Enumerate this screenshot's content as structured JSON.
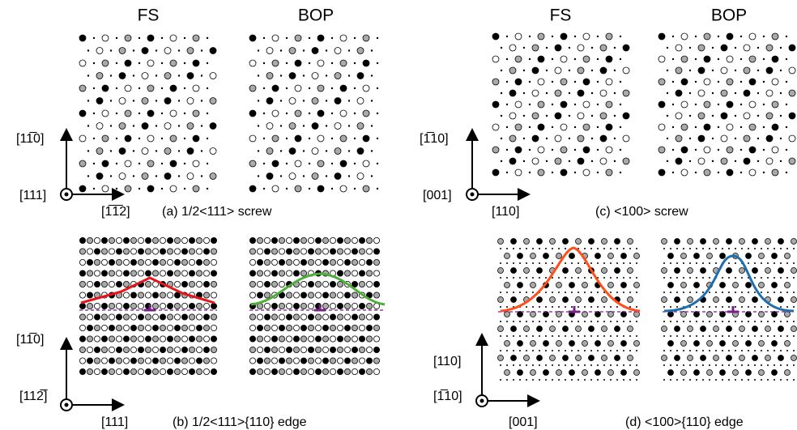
{
  "panels": [
    {
      "headings": [
        "FS",
        "BOP"
      ],
      "axis_vertical": "[11̅0]",
      "axis_normal": "[111]",
      "axis_horizontal": "[1̅1̅2]",
      "caption": "(a) 1/2<111> screw"
    },
    {
      "headings": [
        "FS",
        "BOP"
      ],
      "axis_vertical": "[1̅10]",
      "axis_normal": "[001]",
      "axis_horizontal": "[110]",
      "caption": "(c) <100> screw"
    },
    {
      "axis_vertical": "[11̅0]",
      "axis_normal": "[112̅]",
      "axis_horizontal": "[111]",
      "caption": "(b) 1/2<111>{110} edge"
    },
    {
      "axis_vertical": "[110]",
      "axis_normal": "[1̅10]",
      "axis_horizontal": "[001]",
      "caption": "(d) <100>{110} edge"
    }
  ]
}
